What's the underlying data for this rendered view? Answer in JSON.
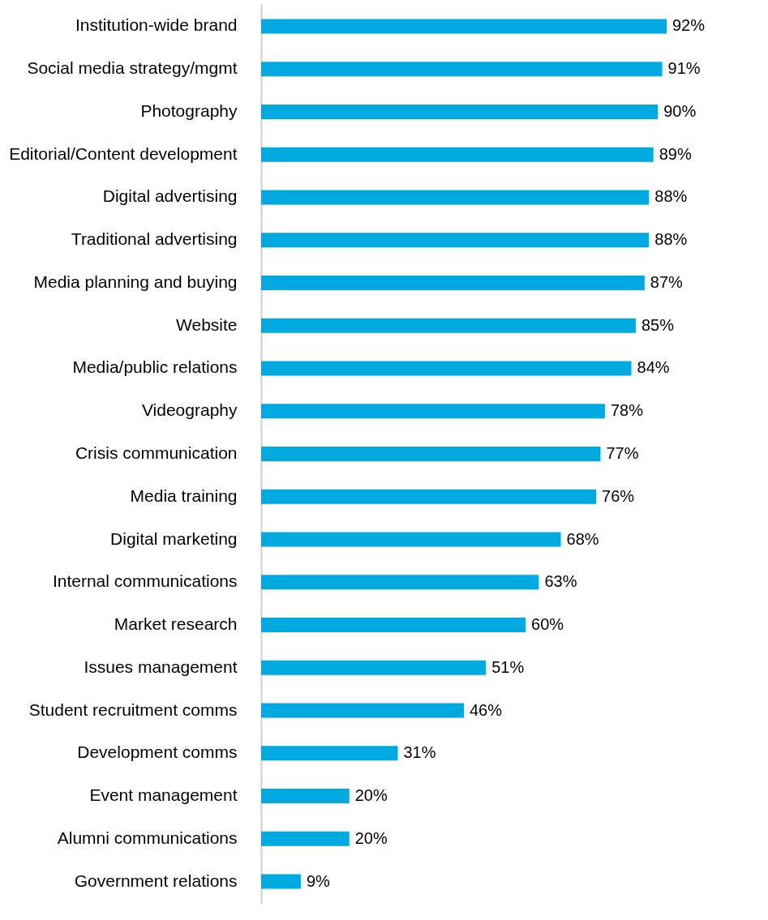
{
  "chart_data": {
    "type": "bar",
    "orientation": "horizontal",
    "color": "#00a9e0",
    "categories": [
      "Institution-wide brand",
      "Social media strategy/mgmt",
      "Photography",
      "Editorial/Content development",
      "Digital advertising",
      "Traditional advertising",
      "Media planning and buying",
      "Website",
      "Media/public relations",
      "Videography",
      "Crisis communication",
      "Media training",
      "Digital marketing",
      "Internal communications",
      "Market research",
      "Issues management",
      "Student recruitment comms",
      "Development comms",
      "Event management",
      "Alumni communications",
      "Government relations"
    ],
    "values": [
      92,
      91,
      90,
      89,
      88,
      88,
      87,
      85,
      84,
      78,
      77,
      76,
      68,
      63,
      60,
      51,
      46,
      31,
      20,
      20,
      9
    ],
    "value_labels": [
      "92%",
      "91%",
      "90%",
      "89%",
      "88%",
      "88%",
      "87%",
      "85%",
      "84%",
      "78%",
      "77%",
      "76%",
      "68%",
      "63%",
      "60%",
      "51%",
      "46%",
      "31%",
      "20%",
      "20%",
      "9%"
    ]
  }
}
